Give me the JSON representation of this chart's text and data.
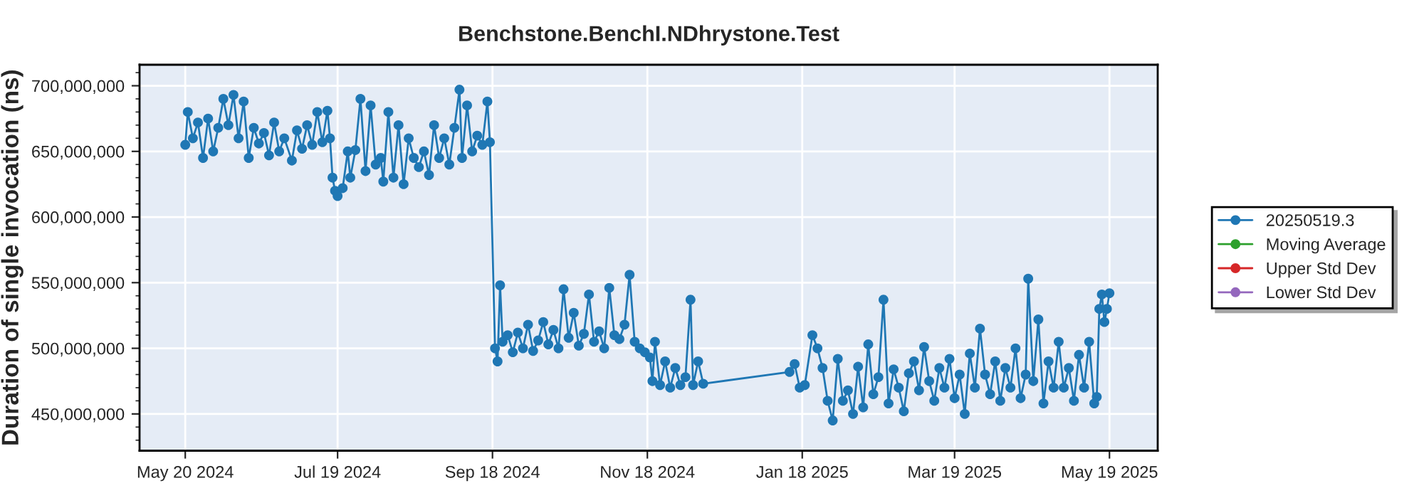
{
  "chart_data": {
    "type": "line",
    "title": "Benchstone.BenchI.NDhrystone.Test",
    "ylabel": "Duration of single invocation (ns)",
    "x": [
      "2024-05-20",
      "2024-05-21",
      "2024-05-23",
      "2024-05-25",
      "2024-05-27",
      "2024-05-29",
      "2024-05-31",
      "2024-06-02",
      "2024-06-04",
      "2024-06-06",
      "2024-06-08",
      "2024-06-10",
      "2024-06-12",
      "2024-06-14",
      "2024-06-16",
      "2024-06-18",
      "2024-06-20",
      "2024-06-22",
      "2024-06-24",
      "2024-06-26",
      "2024-06-28",
      "2024-07-01",
      "2024-07-03",
      "2024-07-05",
      "2024-07-07",
      "2024-07-09",
      "2024-07-11",
      "2024-07-13",
      "2024-07-15",
      "2024-07-16",
      "2024-07-17",
      "2024-07-18",
      "2024-07-19",
      "2024-07-21",
      "2024-07-23",
      "2024-07-24",
      "2024-07-26",
      "2024-07-28",
      "2024-07-30",
      "2024-08-01",
      "2024-08-03",
      "2024-08-05",
      "2024-08-06",
      "2024-08-08",
      "2024-08-10",
      "2024-08-12",
      "2024-08-14",
      "2024-08-16",
      "2024-08-18",
      "2024-08-20",
      "2024-08-22",
      "2024-08-24",
      "2024-08-26",
      "2024-08-28",
      "2024-08-30",
      "2024-09-01",
      "2024-09-03",
      "2024-09-05",
      "2024-09-06",
      "2024-09-08",
      "2024-09-10",
      "2024-09-12",
      "2024-09-14",
      "2024-09-16",
      "2024-09-17",
      "2024-09-19",
      "2024-09-20",
      "2024-09-21",
      "2024-09-22",
      "2024-09-24",
      "2024-09-26",
      "2024-09-28",
      "2024-09-30",
      "2024-10-02",
      "2024-10-04",
      "2024-10-06",
      "2024-10-08",
      "2024-10-10",
      "2024-10-12",
      "2024-10-14",
      "2024-10-16",
      "2024-10-18",
      "2024-10-20",
      "2024-10-22",
      "2024-10-24",
      "2024-10-26",
      "2024-10-28",
      "2024-10-30",
      "2024-11-01",
      "2024-11-03",
      "2024-11-05",
      "2024-11-07",
      "2024-11-09",
      "2024-11-11",
      "2024-11-13",
      "2024-11-15",
      "2024-11-17",
      "2024-11-19",
      "2024-11-20",
      "2024-11-21",
      "2024-11-23",
      "2024-11-25",
      "2024-11-27",
      "2024-11-29",
      "2024-12-01",
      "2024-12-03",
      "2024-12-05",
      "2024-12-06",
      "2024-12-08",
      "2024-12-10",
      "2025-01-13",
      "2025-01-15",
      "2025-01-17",
      "2025-01-19",
      "2025-01-22",
      "2025-01-24",
      "2025-01-26",
      "2025-01-28",
      "2025-01-30",
      "2025-02-01",
      "2025-02-03",
      "2025-02-05",
      "2025-02-07",
      "2025-02-09",
      "2025-02-11",
      "2025-02-13",
      "2025-02-15",
      "2025-02-17",
      "2025-02-19",
      "2025-02-21",
      "2025-02-23",
      "2025-02-25",
      "2025-02-27",
      "2025-03-01",
      "2025-03-03",
      "2025-03-05",
      "2025-03-07",
      "2025-03-09",
      "2025-03-11",
      "2025-03-13",
      "2025-03-15",
      "2025-03-17",
      "2025-03-19",
      "2025-03-21",
      "2025-03-23",
      "2025-03-25",
      "2025-03-27",
      "2025-03-29",
      "2025-03-31",
      "2025-04-02",
      "2025-04-04",
      "2025-04-06",
      "2025-04-08",
      "2025-04-10",
      "2025-04-12",
      "2025-04-14",
      "2025-04-16",
      "2025-04-17",
      "2025-04-19",
      "2025-04-21",
      "2025-04-23",
      "2025-04-25",
      "2025-04-27",
      "2025-04-29",
      "2025-05-01",
      "2025-05-03",
      "2025-05-05",
      "2025-05-07",
      "2025-05-09",
      "2025-05-11",
      "2025-05-13",
      "2025-05-14",
      "2025-05-15",
      "2025-05-16",
      "2025-05-17",
      "2025-05-18",
      "2025-05-19"
    ],
    "series": [
      {
        "name": "20250519.3",
        "color": "#1f77b4",
        "values": [
          655000000,
          680000000,
          660000000,
          672000000,
          645000000,
          675000000,
          650000000,
          668000000,
          690000000,
          670000000,
          693000000,
          660000000,
          688000000,
          645000000,
          668000000,
          656000000,
          664000000,
          647000000,
          672000000,
          650000000,
          660000000,
          643000000,
          666000000,
          652000000,
          670000000,
          655000000,
          680000000,
          657000000,
          681000000,
          660000000,
          630000000,
          620000000,
          616000000,
          622000000,
          650000000,
          630000000,
          651000000,
          690000000,
          635000000,
          685000000,
          640000000,
          645000000,
          627000000,
          680000000,
          630000000,
          670000000,
          625000000,
          660000000,
          645000000,
          638000000,
          650000000,
          632000000,
          670000000,
          645000000,
          660000000,
          640000000,
          668000000,
          697000000,
          645000000,
          685000000,
          650000000,
          662000000,
          655000000,
          688000000,
          657000000,
          500000000,
          490000000,
          548000000,
          505000000,
          510000000,
          497000000,
          512000000,
          500000000,
          518000000,
          498000000,
          506000000,
          520000000,
          503000000,
          514000000,
          500000000,
          545000000,
          508000000,
          527000000,
          502000000,
          511000000,
          541000000,
          505000000,
          513000000,
          500000000,
          546000000,
          510000000,
          507000000,
          518000000,
          556000000,
          505000000,
          500000000,
          497000000,
          493000000,
          475000000,
          505000000,
          472000000,
          490000000,
          470000000,
          485000000,
          472000000,
          478000000,
          537000000,
          472000000,
          490000000,
          473000000,
          482000000,
          488000000,
          470000000,
          472000000,
          510000000,
          500000000,
          485000000,
          460000000,
          445000000,
          492000000,
          460000000,
          468000000,
          450000000,
          486000000,
          455000000,
          503000000,
          465000000,
          478000000,
          537000000,
          458000000,
          484000000,
          470000000,
          452000000,
          481000000,
          490000000,
          468000000,
          501000000,
          475000000,
          460000000,
          485000000,
          470000000,
          492000000,
          462000000,
          480000000,
          450000000,
          496000000,
          470000000,
          515000000,
          480000000,
          465000000,
          490000000,
          460000000,
          485000000,
          470000000,
          500000000,
          462000000,
          480000000,
          553000000,
          475000000,
          522000000,
          458000000,
          490000000,
          470000000,
          505000000,
          470000000,
          485000000,
          460000000,
          495000000,
          470000000,
          505000000,
          458000000,
          463000000,
          530000000,
          541000000,
          520000000,
          530000000,
          542000000
        ]
      },
      {
        "name": "Moving Average",
        "color": "#2ca02c",
        "values": [
          null,
          null,
          null,
          null,
          null,
          null,
          null,
          null,
          null,
          null,
          null,
          null,
          null,
          null,
          null,
          null,
          null,
          null,
          null,
          null,
          null,
          null,
          null,
          null,
          null,
          null,
          null,
          null,
          null,
          null,
          null,
          null,
          null,
          null,
          null,
          null,
          null,
          null,
          null,
          null,
          null,
          null,
          null,
          null,
          null,
          null,
          null,
          null,
          null,
          null,
          null,
          null,
          null,
          null,
          null,
          null,
          null,
          null,
          null,
          null,
          null,
          null,
          null,
          null,
          null,
          null,
          null,
          null,
          null,
          null,
          null,
          null,
          null,
          null,
          null,
          null,
          null,
          null,
          null,
          null,
          null,
          null,
          null,
          null,
          null,
          null,
          null,
          null,
          null,
          null,
          null,
          null,
          null,
          null,
          null,
          null,
          null,
          null,
          null,
          null,
          null,
          null,
          null,
          null,
          null,
          null,
          null,
          null,
          null,
          null,
          null,
          null,
          null,
          null,
          null,
          null,
          null,
          null,
          null,
          null,
          null,
          null,
          null,
          null,
          null,
          null,
          null,
          null,
          null,
          null,
          null,
          null,
          null,
          null,
          null,
          null,
          null,
          null,
          null,
          null,
          null,
          null,
          null,
          null,
          null,
          null,
          null,
          null,
          null,
          null,
          null,
          null,
          null,
          null,
          null,
          null,
          null,
          null,
          null,
          null,
          null,
          null,
          null,
          null,
          null,
          null,
          null,
          null,
          null,
          null,
          null,
          null,
          null,
          null,
          null,
          null,
          null
        ]
      },
      {
        "name": "Upper Std Dev",
        "color": "#d62728",
        "values": [
          null,
          null,
          null,
          null,
          null,
          null,
          null,
          null,
          null,
          null,
          null,
          null,
          null,
          null,
          null,
          null,
          null,
          null,
          null,
          null,
          null,
          null,
          null,
          null,
          null,
          null,
          null,
          null,
          null,
          null,
          null,
          null,
          null,
          null,
          null,
          null,
          null,
          null,
          null,
          null,
          null,
          null,
          null,
          null,
          null,
          null,
          null,
          null,
          null,
          null,
          null,
          null,
          null,
          null,
          null,
          null,
          null,
          null,
          null,
          null,
          null,
          null,
          null,
          null,
          null,
          null,
          null,
          null,
          null,
          null,
          null,
          null,
          null,
          null,
          null,
          null,
          null,
          null,
          null,
          null,
          null,
          null,
          null,
          null,
          null,
          null,
          null,
          null,
          null,
          null,
          null,
          null,
          null,
          null,
          null,
          null,
          null,
          null,
          null,
          null,
          null,
          null,
          null,
          null,
          null,
          null,
          null,
          null,
          null,
          null,
          null,
          null,
          null,
          null,
          null,
          null,
          null,
          null,
          null,
          null,
          null,
          null,
          null,
          null,
          null,
          null,
          null,
          null,
          null,
          null,
          null,
          null,
          null,
          null,
          null,
          null,
          null,
          null,
          null,
          null,
          null,
          null,
          null,
          null,
          null,
          null,
          null,
          null,
          null,
          null,
          null,
          null,
          null,
          null,
          null,
          null,
          null,
          null,
          null,
          null,
          null,
          null,
          null,
          null,
          null,
          null,
          null,
          null,
          null,
          null,
          null,
          null,
          null,
          null,
          null,
          null,
          null
        ]
      },
      {
        "name": "Lower Std Dev",
        "color": "#9467bd",
        "values": [
          null,
          null,
          null,
          null,
          null,
          null,
          null,
          null,
          null,
          null,
          null,
          null,
          null,
          null,
          null,
          null,
          null,
          null,
          null,
          null,
          null,
          null,
          null,
          null,
          null,
          null,
          null,
          null,
          null,
          null,
          null,
          null,
          null,
          null,
          null,
          null,
          null,
          null,
          null,
          null,
          null,
          null,
          null,
          null,
          null,
          null,
          null,
          null,
          null,
          null,
          null,
          null,
          null,
          null,
          null,
          null,
          null,
          null,
          null,
          null,
          null,
          null,
          null,
          null,
          null,
          null,
          null,
          null,
          null,
          null,
          null,
          null,
          null,
          null,
          null,
          null,
          null,
          null,
          null,
          null,
          null,
          null,
          null,
          null,
          null,
          null,
          null,
          null,
          null,
          null,
          null,
          null,
          null,
          null,
          null,
          null,
          null,
          null,
          null,
          null,
          null,
          null,
          null,
          null,
          null,
          null,
          null,
          null,
          null,
          null,
          null,
          null,
          null,
          null,
          null,
          null,
          null,
          null,
          null,
          null,
          null,
          null,
          null,
          null,
          null,
          null,
          null,
          null,
          null,
          null,
          null,
          null,
          null,
          null,
          null,
          null,
          null,
          null,
          null,
          null,
          null,
          null,
          null,
          null,
          null,
          null,
          null,
          null,
          null,
          null,
          null,
          null,
          null,
          null,
          null,
          null,
          null,
          null,
          null,
          null,
          null,
          null,
          null,
          null,
          null,
          null,
          null,
          null,
          null,
          null,
          null,
          null,
          null,
          null,
          null,
          null,
          null
        ]
      }
    ],
    "xlim": [
      "2024-05-02",
      "2025-06-07"
    ],
    "xticks": [
      {
        "value": "2024-05-20",
        "label": "May 20 2024"
      },
      {
        "value": "2024-07-19",
        "label": "Jul 19 2024"
      },
      {
        "value": "2024-09-18",
        "label": "Sep 18 2024"
      },
      {
        "value": "2024-11-18",
        "label": "Nov 18 2024"
      },
      {
        "value": "2025-01-18",
        "label": "Jan 18 2025"
      },
      {
        "value": "2025-03-19",
        "label": "Mar 19 2025"
      },
      {
        "value": "2025-05-19",
        "label": "May 19 2025"
      }
    ],
    "ylim": [
      422000000,
      716000000
    ],
    "yticks": [
      {
        "value": 450000000,
        "label": "450,000,000"
      },
      {
        "value": 500000000,
        "label": "500,000,000"
      },
      {
        "value": 550000000,
        "label": "550,000,000"
      },
      {
        "value": 600000000,
        "label": "600,000,000"
      },
      {
        "value": 650000000,
        "label": "650,000,000"
      },
      {
        "value": 700000000,
        "label": "700,000,000"
      }
    ],
    "grid": true,
    "legend": "right",
    "marker": "circle",
    "line_style": "solid"
  }
}
